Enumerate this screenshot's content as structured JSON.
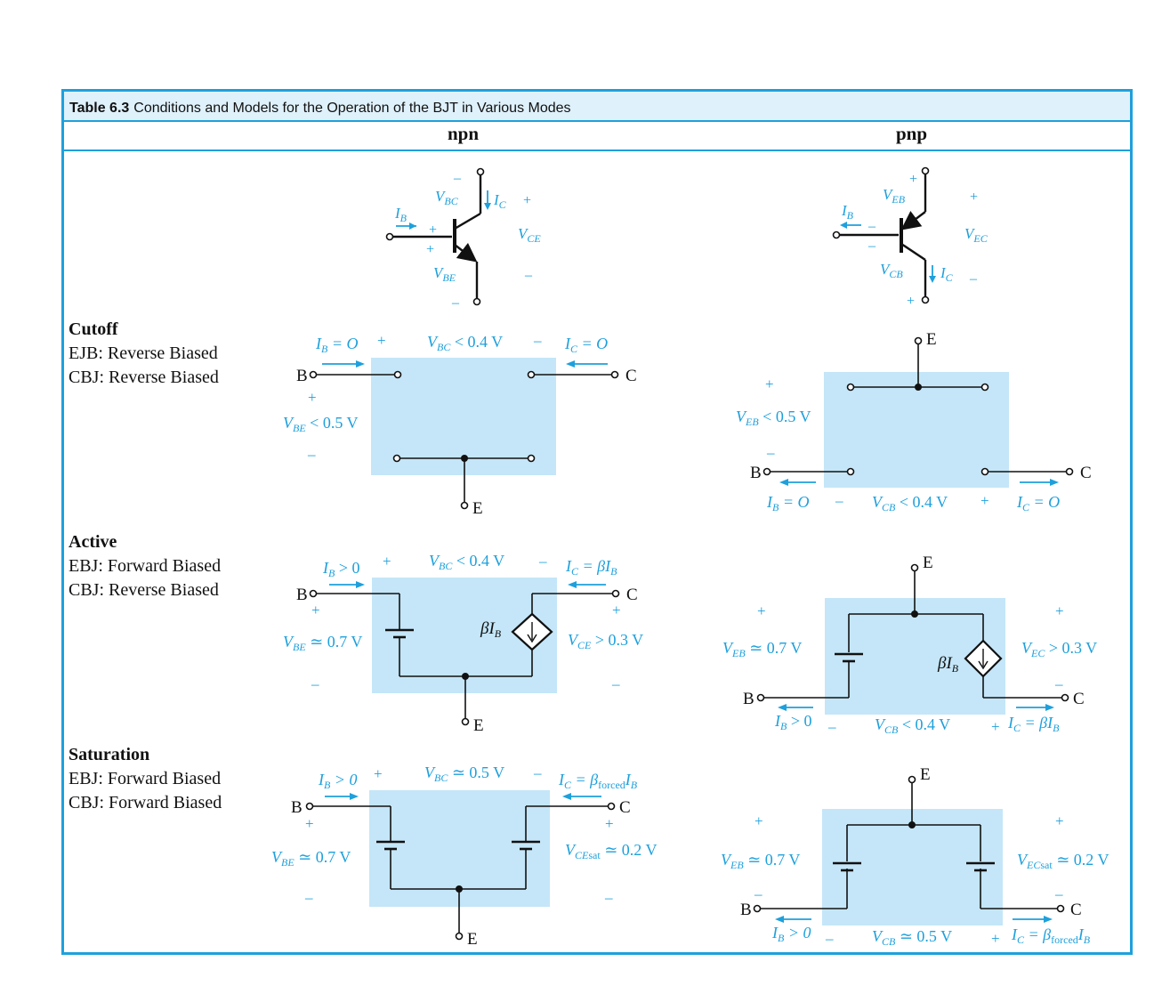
{
  "table": {
    "number": "Table 6.3",
    "title": "Conditions and Models for the Operation of the BJT in Various Modes"
  },
  "columns": {
    "npn": "npn",
    "pnp": "pnp"
  },
  "modes": [
    {
      "name": "Cutoff",
      "ebj": "EJB: Reverse Biased",
      "cbj": "CBJ: Reverse Biased"
    },
    {
      "name": "Active",
      "ebj": "EBJ: Forward Biased",
      "cbj": "CBJ: Reverse Biased"
    },
    {
      "name": "Saturation",
      "ebj": "EBJ: Forward Biased",
      "cbj": "CBJ: Forward Biased"
    }
  ],
  "terminals": {
    "b": "B",
    "c": "C",
    "e": "E"
  },
  "symbols": {
    "V": "V",
    "I": "I",
    "beta": "β",
    "forced": "forced",
    "sat": "sat",
    "BC": "BC",
    "CE": "CE",
    "BE": "BE",
    "EB": "EB",
    "EC": "EC",
    "CB": "CB",
    "B": "B",
    "C": "C",
    "plus": "+",
    "minus": "–",
    "lt04": " < 0.4 V",
    "lt05": " < 0.5 V",
    "eqO": " = O",
    "gt0": " > 0",
    "eq": " = ",
    "ap07": " ≃ 0.7 V",
    "ap05": " ≃ 0.5 V",
    "ap02": " ≃ 0.2 V",
    "gt03": " > 0.3 V"
  },
  "colors": {
    "accent": "#1ea0dc",
    "model_fill": "#c4e6f8",
    "title_fill": "#dff1fb"
  }
}
